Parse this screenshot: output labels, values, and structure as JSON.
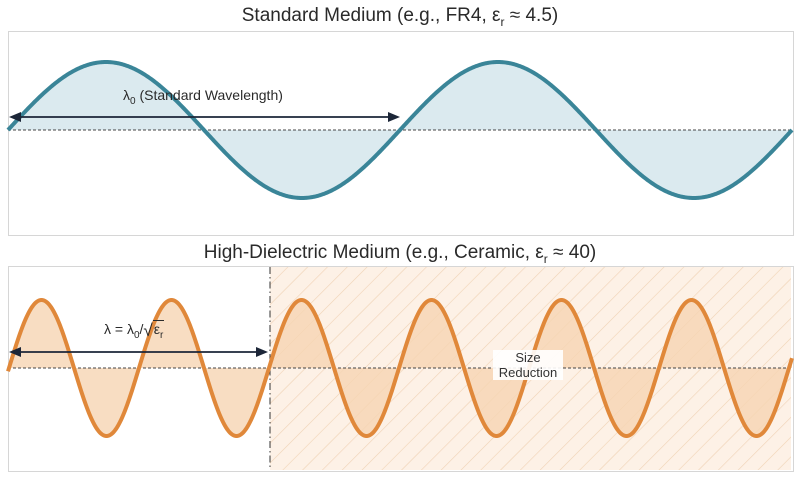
{
  "top": {
    "title_pre": "Standard Medium (e.g., FR4, ε",
    "title_sub": "r",
    "title_post": " ≈ 4.5)",
    "label_pre": "λ",
    "label_sub": "0",
    "label_post": " (Standard Wavelength)",
    "wave_color": "#3a8598",
    "fill_color": "#cfe3ea"
  },
  "bottom": {
    "title_pre": "High-Dielectric Medium (e.g., Ceramic, ε",
    "title_sub": "r",
    "title_post": " ≈ 40)",
    "label_pre": "λ = λ",
    "label_sub": "0",
    "label_slash": "/",
    "label_eps": "ε",
    "label_eps_sub": "r",
    "wave_color": "#e0883a",
    "fill_color": "#f6d4b3",
    "hatch_bg": "#fdf1e6",
    "hatch_line": "#f0d2b4",
    "size_label_line1": "Size",
    "size_label_line2": "Reduction"
  },
  "arrow_color": "#1c2638",
  "axis_color": "#444444"
}
